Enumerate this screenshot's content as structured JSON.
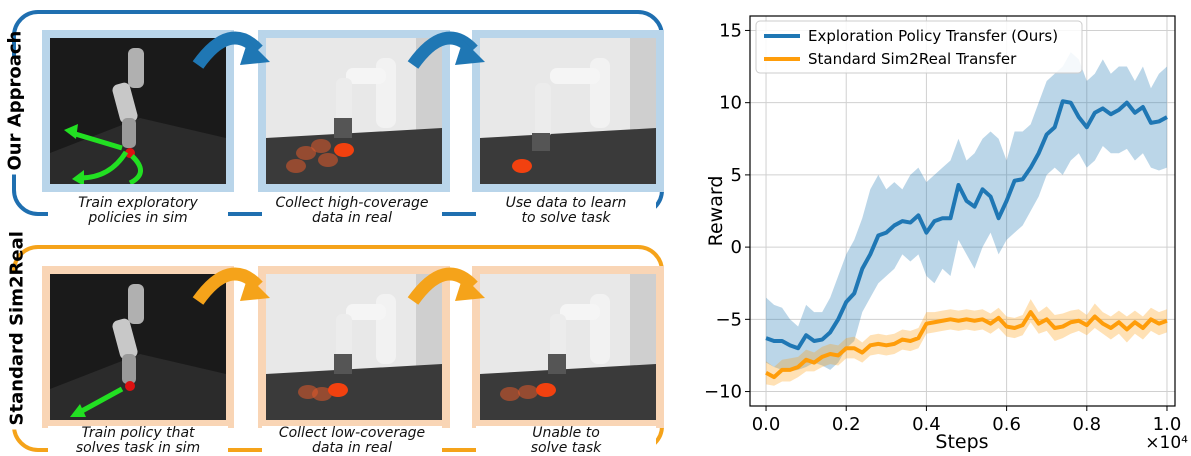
{
  "rows": [
    {
      "title": "Our Approach",
      "accent": "#1f6fb0",
      "panel_border": "#b9d5ea",
      "arrow_color": "#1f77b4",
      "captions": [
        [
          "Train exploratory",
          "policies in sim"
        ],
        [
          "Collect high-coverage",
          "data in real"
        ],
        [
          "Use data to learn",
          "to solve task"
        ]
      ]
    },
    {
      "title": "Standard Sim2Real",
      "accent": "#f5a31a",
      "panel_border": "#f9d5b5",
      "arrow_color": "#f5a31a",
      "captions": [
        [
          "Train policy that",
          "solves task in sim"
        ],
        [
          "Collect low-coverage",
          "data in real"
        ],
        [
          "Unable to",
          "solve task"
        ]
      ]
    }
  ],
  "chart_data": {
    "type": "line",
    "title": "",
    "xlabel": "Steps",
    "ylabel": "Reward",
    "x_multiplier_label": "×10⁴",
    "xlim": [
      -0.04,
      1.02
    ],
    "ylim": [
      -11,
      16
    ],
    "x_ticks": [
      "0.0",
      "0.2",
      "0.4",
      "0.6",
      "0.8",
      "1.0"
    ],
    "y_ticks": [
      "−10",
      "−5",
      "0",
      "5",
      "10",
      "15"
    ],
    "grid": true,
    "legend_position": "top-left",
    "x": [
      0.0,
      0.02,
      0.04,
      0.06,
      0.08,
      0.1,
      0.12,
      0.14,
      0.16,
      0.18,
      0.2,
      0.22,
      0.24,
      0.26,
      0.28,
      0.3,
      0.32,
      0.34,
      0.36,
      0.38,
      0.4,
      0.42,
      0.44,
      0.46,
      0.48,
      0.5,
      0.52,
      0.54,
      0.56,
      0.58,
      0.6,
      0.62,
      0.64,
      0.66,
      0.68,
      0.7,
      0.72,
      0.74,
      0.76,
      0.78,
      0.8,
      0.82,
      0.84,
      0.86,
      0.88,
      0.9,
      0.92,
      0.94,
      0.96,
      0.98,
      1.0
    ],
    "series": [
      {
        "name": "Exploration Policy Transfer (Ours)",
        "color": "#1f77b4",
        "values": [
          -6.3,
          -6.5,
          -6.5,
          -6.8,
          -7.0,
          -6.1,
          -6.5,
          -6.4,
          -5.9,
          -5.0,
          -3.8,
          -3.2,
          -1.5,
          -0.5,
          0.8,
          1.0,
          1.5,
          1.8,
          1.7,
          2.2,
          1.0,
          1.8,
          2.0,
          2.0,
          4.3,
          3.2,
          2.8,
          4.0,
          3.5,
          2.0,
          3.2,
          4.6,
          4.7,
          5.5,
          6.5,
          7.8,
          8.3,
          10.1,
          10.0,
          9.0,
          8.3,
          9.3,
          9.6,
          9.2,
          9.5,
          10.0,
          9.3,
          9.7,
          8.6,
          8.7,
          9.0
        ],
        "lower": [
          -8.0,
          -8.3,
          -8.5,
          -8.6,
          -8.5,
          -8.3,
          -8.0,
          -8.2,
          -8.5,
          -8.0,
          -7.0,
          -6.5,
          -4.5,
          -3.5,
          -2.5,
          -2.0,
          -1.5,
          -0.5,
          -1.0,
          -0.5,
          -2.0,
          -2.5,
          -1.5,
          -2.0,
          0.5,
          -0.5,
          -1.5,
          0.0,
          1.0,
          -0.5,
          0.5,
          1.0,
          1.5,
          2.5,
          3.5,
          5.0,
          5.5,
          5.0,
          6.0,
          6.5,
          5.5,
          6.0,
          7.0,
          6.5,
          6.5,
          6.8,
          6.0,
          6.5,
          5.5,
          5.3,
          5.5
        ],
        "upper": [
          -3.5,
          -4.0,
          -4.2,
          -5.0,
          -5.5,
          -4.0,
          -4.5,
          -4.5,
          -3.5,
          -2.0,
          -0.5,
          0.5,
          2.0,
          4.0,
          5.0,
          4.0,
          4.5,
          4.0,
          5.0,
          5.5,
          4.5,
          5.0,
          5.5,
          6.0,
          7.5,
          6.0,
          6.5,
          7.5,
          8.0,
          7.5,
          6.0,
          8.0,
          8.0,
          8.5,
          10.0,
          11.5,
          12.0,
          12.5,
          13.5,
          13.0,
          11.5,
          12.0,
          13.0,
          12.0,
          12.5,
          12.5,
          11.5,
          12.5,
          11.0,
          12.0,
          12.5
        ]
      },
      {
        "name": "Standard Sim2Real Transfer",
        "color": "#ff9d0a",
        "values": [
          -8.7,
          -9.0,
          -8.5,
          -8.5,
          -8.3,
          -7.8,
          -8.0,
          -7.6,
          -7.4,
          -7.5,
          -7.0,
          -7.0,
          -7.3,
          -6.8,
          -6.7,
          -6.8,
          -6.7,
          -6.4,
          -6.5,
          -6.3,
          -5.3,
          -5.2,
          -5.1,
          -5.0,
          -5.1,
          -5.0,
          -5.1,
          -5.0,
          -5.3,
          -4.9,
          -5.5,
          -5.6,
          -5.4,
          -4.5,
          -5.3,
          -5.0,
          -5.6,
          -5.5,
          -5.2,
          -5.1,
          -5.4,
          -4.8,
          -5.3,
          -5.6,
          -5.2,
          -5.7,
          -5.2,
          -5.6,
          -5.0,
          -5.3,
          -5.1
        ],
        "lower": [
          -9.5,
          -9.6,
          -9.3,
          -9.3,
          -9.0,
          -8.6,
          -8.6,
          -8.3,
          -8.1,
          -8.2,
          -7.7,
          -7.7,
          -8.0,
          -7.5,
          -7.4,
          -7.5,
          -7.4,
          -7.1,
          -7.2,
          -7.0,
          -6.0,
          -5.9,
          -5.8,
          -5.7,
          -5.8,
          -5.7,
          -5.8,
          -5.7,
          -6.0,
          -5.6,
          -6.2,
          -6.3,
          -6.1,
          -5.2,
          -6.0,
          -5.8,
          -6.5,
          -6.3,
          -6.0,
          -5.8,
          -6.1,
          -5.6,
          -6.0,
          -6.4,
          -6.0,
          -6.6,
          -6.0,
          -6.4,
          -5.8,
          -6.1,
          -5.9
        ],
        "upper": [
          -7.9,
          -8.3,
          -7.8,
          -7.7,
          -7.6,
          -7.1,
          -7.3,
          -6.9,
          -6.7,
          -6.8,
          -6.3,
          -6.2,
          -6.6,
          -6.1,
          -6.0,
          -6.1,
          -6.0,
          -5.7,
          -5.8,
          -5.6,
          -4.5,
          -4.5,
          -4.4,
          -4.3,
          -4.4,
          -4.3,
          -4.4,
          -4.3,
          -4.6,
          -4.2,
          -4.8,
          -4.9,
          -4.7,
          -3.6,
          -4.5,
          -4.1,
          -4.7,
          -4.6,
          -4.4,
          -4.3,
          -4.7,
          -3.9,
          -4.5,
          -4.8,
          -4.4,
          -4.8,
          -4.4,
          -4.8,
          -4.2,
          -4.5,
          -4.3
        ]
      }
    ]
  }
}
